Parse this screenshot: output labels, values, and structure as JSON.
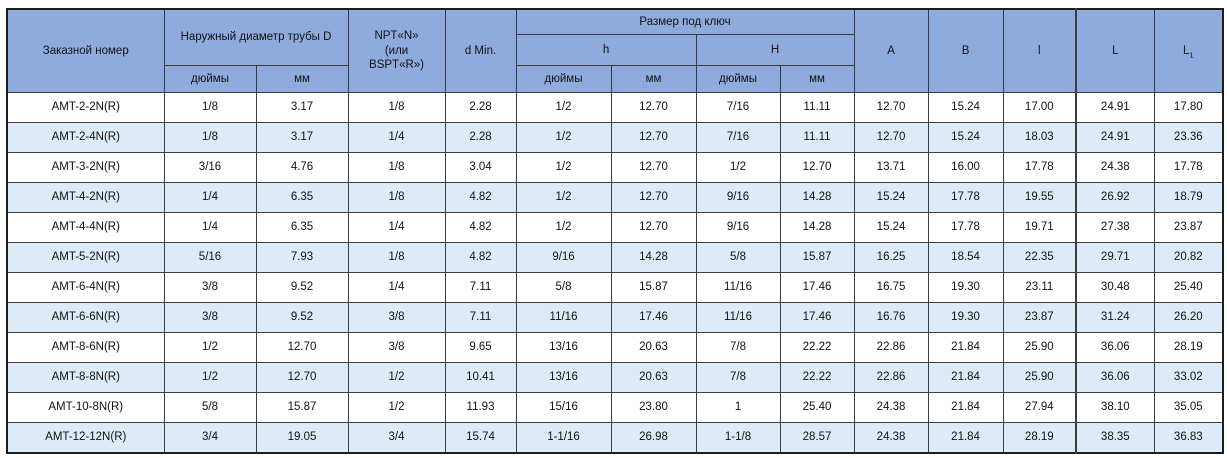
{
  "table": {
    "header": {
      "order_number": "Заказной номер",
      "outer_diameter": "Наружный диаметр трубы D",
      "npt": "NPT«N» (или BSPT«R»)",
      "d_min": "d Min.",
      "wrench_size": "Размер под ключ",
      "h_lower": "h",
      "h_upper": "H",
      "inches": "дюймы",
      "mm": "мм",
      "a": "A",
      "b": "B",
      "l_small": "l",
      "l_big": "L",
      "l1_base": "L",
      "l1_sub": "1"
    },
    "rows": [
      [
        "AMT-2-2N(R)",
        "1/8",
        "3.17",
        "1/8",
        "2.28",
        "1/2",
        "12.70",
        "7/16",
        "11.11",
        "12.70",
        "15.24",
        "17.00",
        "24.91",
        "17.80"
      ],
      [
        "AMT-2-4N(R)",
        "1/8",
        "3.17",
        "1/4",
        "2.28",
        "1/2",
        "12.70",
        "7/16",
        "11.11",
        "12.70",
        "15.24",
        "18.03",
        "24.91",
        "23.36"
      ],
      [
        "AMT-3-2N(R)",
        "3/16",
        "4.76",
        "1/8",
        "3.04",
        "1/2",
        "12.70",
        "1/2",
        "12.70",
        "13.71",
        "16.00",
        "17.78",
        "24.38",
        "17.78"
      ],
      [
        "AMT-4-2N(R)",
        "1/4",
        "6.35",
        "1/8",
        "4.82",
        "1/2",
        "12.70",
        "9/16",
        "14.28",
        "15.24",
        "17.78",
        "19.55",
        "26.92",
        "18.79"
      ],
      [
        "AMT-4-4N(R)",
        "1/4",
        "6.35",
        "1/4",
        "4.82",
        "1/2",
        "12.70",
        "9/16",
        "14.28",
        "15.24",
        "17.78",
        "19.71",
        "27.38",
        "23.87"
      ],
      [
        "AMT-5-2N(R)",
        "5/16",
        "7.93",
        "1/8",
        "4.82",
        "9/16",
        "14.28",
        "5/8",
        "15.87",
        "16.25",
        "18.54",
        "22.35",
        "29.71",
        "20.82"
      ],
      [
        "AMT-6-4N(R)",
        "3/8",
        "9.52",
        "1/4",
        "7.11",
        "5/8",
        "15.87",
        "11/16",
        "17.46",
        "16.75",
        "19.30",
        "23.11",
        "30.48",
        "25.40"
      ],
      [
        "AMT-6-6N(R)",
        "3/8",
        "9.52",
        "3/8",
        "7.11",
        "11/16",
        "17.46",
        "11/16",
        "17.46",
        "16.76",
        "19.30",
        "23.87",
        "31.24",
        "26.20"
      ],
      [
        "AMT-8-6N(R)",
        "1/2",
        "12.70",
        "3/8",
        "9.65",
        "13/16",
        "20.63",
        "7/8",
        "22.22",
        "22.86",
        "21.84",
        "25.90",
        "36.06",
        "28.19"
      ],
      [
        "AMT-8-8N(R)",
        "1/2",
        "12.70",
        "1/2",
        "10.41",
        "13/16",
        "20.63",
        "7/8",
        "22.22",
        "22.86",
        "21.84",
        "25.90",
        "36.06",
        "33.02"
      ],
      [
        "AMT-10-8N(R)",
        "5/8",
        "15.87",
        "1/2",
        "11.93",
        "15/16",
        "23.80",
        "1",
        "25.40",
        "24.38",
        "21.84",
        "27.94",
        "38.10",
        "35.05"
      ],
      [
        "AMT-12-12N(R)",
        "3/4",
        "19.05",
        "3/4",
        "15.74",
        "1-1/16",
        "26.98",
        "1-1/8",
        "28.57",
        "24.38",
        "21.84",
        "28.19",
        "38.35",
        "36.83"
      ]
    ]
  },
  "colors": {
    "header_bg": "#8faadc",
    "alt_row_bg": "#dcebf7",
    "row_bg": "#ffffff",
    "border": "#3d3d3d",
    "outer_border": "#1c1c1c",
    "text": "#121212"
  }
}
